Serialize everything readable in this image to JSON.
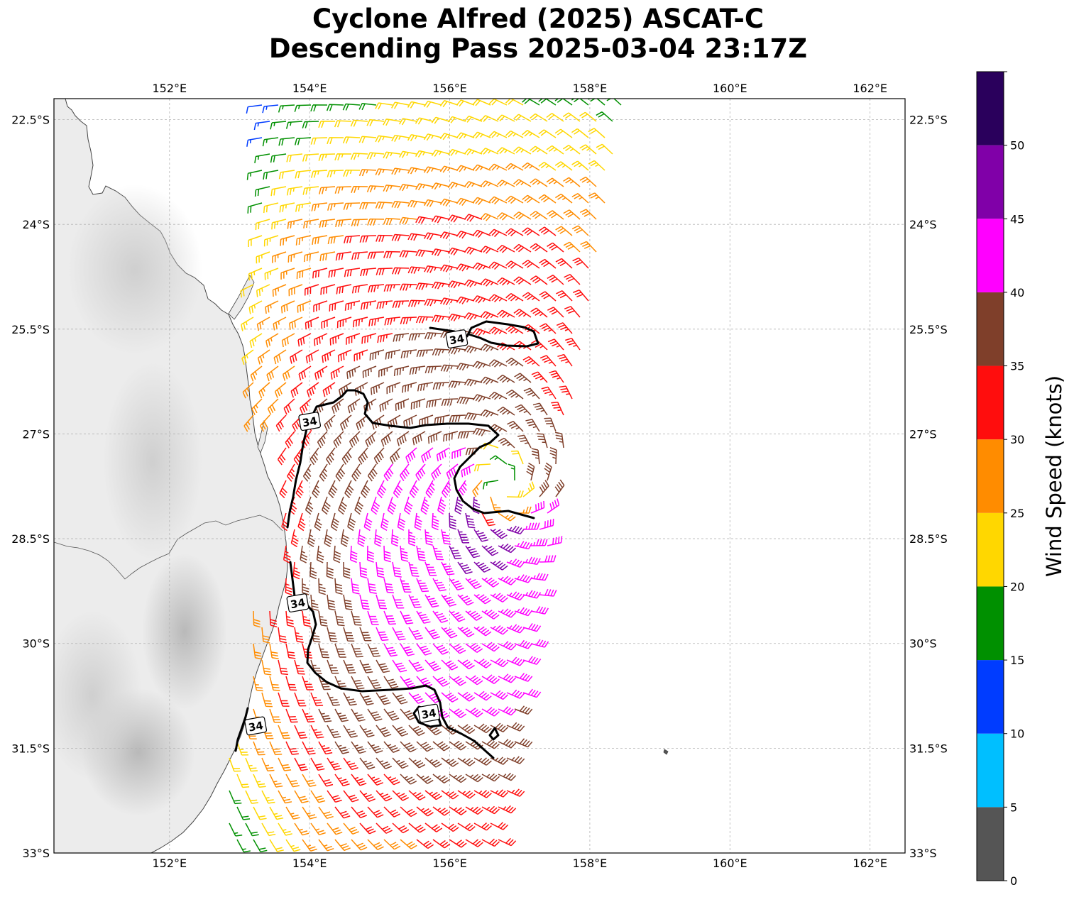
{
  "title": {
    "line1": "Cyclone Alfred (2025) ASCAT-C",
    "line2": "Descending Pass 2025-03-04 23:17Z"
  },
  "map": {
    "lon_range": [
      150.35,
      162.5
    ],
    "lat_range": [
      -33.0,
      -22.2
    ],
    "lon_ticks": [
      {
        "value": 152,
        "label": "152°E"
      },
      {
        "value": 154,
        "label": "154°E"
      },
      {
        "value": 156,
        "label": "156°E"
      },
      {
        "value": 158,
        "label": "158°E"
      },
      {
        "value": 160,
        "label": "160°E"
      },
      {
        "value": 162,
        "label": "162°E"
      }
    ],
    "lat_ticks": [
      {
        "value": -22.5,
        "label": "22.5°S"
      },
      {
        "value": -24.0,
        "label": "24°S"
      },
      {
        "value": -25.5,
        "label": "25.5°S"
      },
      {
        "value": -27.0,
        "label": "27°S"
      },
      {
        "value": -28.5,
        "label": "28.5°S"
      },
      {
        "value": -30.0,
        "label": "30°S"
      },
      {
        "value": -31.5,
        "label": "31.5°S"
      },
      {
        "value": -33.0,
        "label": "33°S"
      }
    ],
    "grid": true,
    "storm_center": {
      "lon": 156.75,
      "lat": -27.75
    },
    "contour_label": "34",
    "contour_label_positions": [
      {
        "lon": 156.1,
        "lat": -25.64
      },
      {
        "lon": 154.0,
        "lat": -26.82
      },
      {
        "lon": 153.83,
        "lat": -29.42
      },
      {
        "lon": 155.7,
        "lat": -31.0
      },
      {
        "lon": 153.23,
        "lat": -31.18
      }
    ],
    "land_color": "#e9e9e9",
    "coast_color": "#444444"
  },
  "colorbar": {
    "label": "Wind Speed (knots)",
    "tick_values": [
      0,
      5,
      10,
      15,
      20,
      25,
      30,
      35,
      40,
      45,
      50
    ],
    "tick_labels": [
      "0",
      "5",
      "10",
      "15",
      "20",
      "25",
      "30",
      "35",
      "40",
      "45",
      "50"
    ],
    "max": 55,
    "bins": [
      {
        "min": 0,
        "max": 5,
        "color": "#555555"
      },
      {
        "min": 5,
        "max": 10,
        "color": "#00bfff"
      },
      {
        "min": 10,
        "max": 15,
        "color": "#003cff"
      },
      {
        "min": 15,
        "max": 20,
        "color": "#009000"
      },
      {
        "min": 20,
        "max": 25,
        "color": "#ffd700"
      },
      {
        "min": 25,
        "max": 30,
        "color": "#ff8c00"
      },
      {
        "min": 30,
        "max": 35,
        "color": "#ff0d0d"
      },
      {
        "min": 35,
        "max": 40,
        "color": "#7f3f2a"
      },
      {
        "min": 40,
        "max": 45,
        "color": "#ff00ff"
      },
      {
        "min": 45,
        "max": 50,
        "color": "#8000a8"
      },
      {
        "min": 50,
        "max": 55,
        "color": "#2a005c"
      }
    ]
  }
}
